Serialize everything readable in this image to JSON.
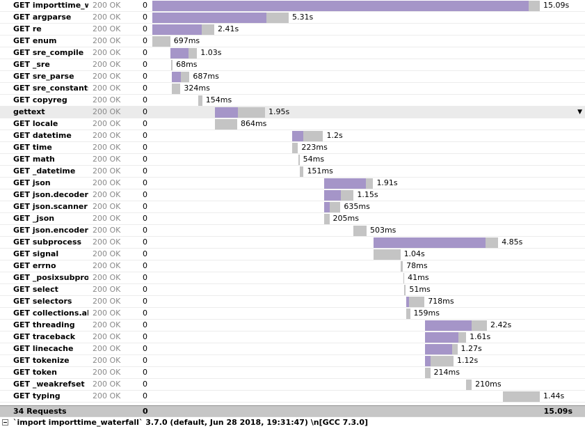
{
  "timeline": {
    "max_ms": 15090
  },
  "requests": [
    {
      "name": "GET importtime_waterfall",
      "status": "200 OK",
      "size": "0",
      "start_ms": 0,
      "self_ms": 14650,
      "total_ms": 15090,
      "label": "15.09s"
    },
    {
      "name": "GET argparse",
      "status": "200 OK",
      "size": "0",
      "start_ms": 0,
      "self_ms": 4450,
      "total_ms": 5310,
      "label": "5.31s"
    },
    {
      "name": "GET re",
      "status": "200 OK",
      "size": "0",
      "start_ms": 0,
      "self_ms": 1930,
      "total_ms": 2410,
      "label": "2.41s"
    },
    {
      "name": "GET enum",
      "status": "200 OK",
      "size": "0",
      "start_ms": 0,
      "self_ms": 0,
      "total_ms": 697,
      "label": "697ms"
    },
    {
      "name": "GET sre_compile",
      "status": "200 OK",
      "size": "0",
      "start_ms": 710,
      "self_ms": 700,
      "total_ms": 1030,
      "label": "1.03s"
    },
    {
      "name": "GET _sre",
      "status": "200 OK",
      "size": "0",
      "start_ms": 720,
      "self_ms": 0,
      "total_ms": 68,
      "label": "68ms"
    },
    {
      "name": "GET sre_parse",
      "status": "200 OK",
      "size": "0",
      "start_ms": 760,
      "self_ms": 340,
      "total_ms": 687,
      "label": "687ms"
    },
    {
      "name": "GET sre_constants",
      "status": "200 OK",
      "size": "0",
      "start_ms": 770,
      "self_ms": 0,
      "total_ms": 324,
      "label": "324ms"
    },
    {
      "name": "GET copyreg",
      "status": "200 OK",
      "size": "0",
      "start_ms": 1790,
      "self_ms": 0,
      "total_ms": 154,
      "label": "154ms"
    },
    {
      "name": "gettext",
      "status": "200 OK",
      "size": "0",
      "start_ms": 2440,
      "self_ms": 900,
      "total_ms": 1950,
      "label": "1.95s",
      "selected": true
    },
    {
      "name": "GET locale",
      "status": "200 OK",
      "size": "0",
      "start_ms": 2440,
      "self_ms": 0,
      "total_ms": 864,
      "label": "864ms"
    },
    {
      "name": "GET datetime",
      "status": "200 OK",
      "size": "0",
      "start_ms": 5450,
      "self_ms": 420,
      "total_ms": 1200,
      "label": "1.2s"
    },
    {
      "name": "GET time",
      "status": "200 OK",
      "size": "0",
      "start_ms": 5450,
      "self_ms": 0,
      "total_ms": 223,
      "label": "223ms"
    },
    {
      "name": "GET math",
      "status": "200 OK",
      "size": "0",
      "start_ms": 5680,
      "self_ms": 0,
      "total_ms": 54,
      "label": "54ms"
    },
    {
      "name": "GET _datetime",
      "status": "200 OK",
      "size": "0",
      "start_ms": 5740,
      "self_ms": 0,
      "total_ms": 151,
      "label": "151ms"
    },
    {
      "name": "GET json",
      "status": "200 OK",
      "size": "0",
      "start_ms": 6690,
      "self_ms": 1640,
      "total_ms": 1910,
      "label": "1.91s"
    },
    {
      "name": "GET json.decoder",
      "status": "200 OK",
      "size": "0",
      "start_ms": 6690,
      "self_ms": 650,
      "total_ms": 1150,
      "label": "1.15s"
    },
    {
      "name": "GET json.scanner",
      "status": "200 OK",
      "size": "0",
      "start_ms": 6690,
      "self_ms": 210,
      "total_ms": 635,
      "label": "635ms"
    },
    {
      "name": "GET _json",
      "status": "200 OK",
      "size": "0",
      "start_ms": 6690,
      "self_ms": 0,
      "total_ms": 205,
      "label": "205ms"
    },
    {
      "name": "GET json.encoder",
      "status": "200 OK",
      "size": "0",
      "start_ms": 7840,
      "self_ms": 0,
      "total_ms": 503,
      "label": "503ms"
    },
    {
      "name": "GET subprocess",
      "status": "200 OK",
      "size": "0",
      "start_ms": 8620,
      "self_ms": 4360,
      "total_ms": 4850,
      "label": "4.85s"
    },
    {
      "name": "GET signal",
      "status": "200 OK",
      "size": "0",
      "start_ms": 8620,
      "self_ms": 0,
      "total_ms": 1040,
      "label": "1.04s"
    },
    {
      "name": "GET errno",
      "status": "200 OK",
      "size": "0",
      "start_ms": 9680,
      "self_ms": 0,
      "total_ms": 78,
      "label": "78ms"
    },
    {
      "name": "GET _posixsubprocess",
      "status": "200 OK",
      "size": "0",
      "start_ms": 9770,
      "self_ms": 0,
      "total_ms": 41,
      "label": "41ms"
    },
    {
      "name": "GET select",
      "status": "200 OK",
      "size": "0",
      "start_ms": 9820,
      "self_ms": 0,
      "total_ms": 51,
      "label": "51ms"
    },
    {
      "name": "GET selectors",
      "status": "200 OK",
      "size": "0",
      "start_ms": 9880,
      "self_ms": 120,
      "total_ms": 718,
      "label": "718ms"
    },
    {
      "name": "GET collections.abc",
      "status": "200 OK",
      "size": "0",
      "start_ms": 9880,
      "self_ms": 0,
      "total_ms": 159,
      "label": "159ms"
    },
    {
      "name": "GET threading",
      "status": "200 OK",
      "size": "0",
      "start_ms": 10610,
      "self_ms": 1830,
      "total_ms": 2420,
      "label": "2.42s"
    },
    {
      "name": "GET traceback",
      "status": "200 OK",
      "size": "0",
      "start_ms": 10610,
      "self_ms": 1300,
      "total_ms": 1610,
      "label": "1.61s"
    },
    {
      "name": "GET linecache",
      "status": "200 OK",
      "size": "0",
      "start_ms": 10610,
      "self_ms": 1070,
      "total_ms": 1270,
      "label": "1.27s"
    },
    {
      "name": "GET tokenize",
      "status": "200 OK",
      "size": "0",
      "start_ms": 10610,
      "self_ms": 220,
      "total_ms": 1120,
      "label": "1.12s"
    },
    {
      "name": "GET token",
      "status": "200 OK",
      "size": "0",
      "start_ms": 10610,
      "self_ms": 0,
      "total_ms": 214,
      "label": "214ms"
    },
    {
      "name": "GET _weakrefset",
      "status": "200 OK",
      "size": "0",
      "start_ms": 12230,
      "self_ms": 0,
      "total_ms": 210,
      "label": "210ms"
    },
    {
      "name": "GET typing",
      "status": "200 OK",
      "size": "0",
      "start_ms": 13650,
      "self_ms": 0,
      "total_ms": 1440,
      "label": "1.44s"
    }
  ],
  "summary": {
    "count_label": "34 Requests",
    "size": "0",
    "total_label": "15.09s"
  },
  "footer": {
    "title": "`import importtime_waterfall` 3.7.0 (default, Jun 28 2018, 19:31:47) \\n[GCC 7.3.0]"
  },
  "colors": {
    "self_bar": "#a595c8",
    "total_bar": "#c4c4c4"
  }
}
